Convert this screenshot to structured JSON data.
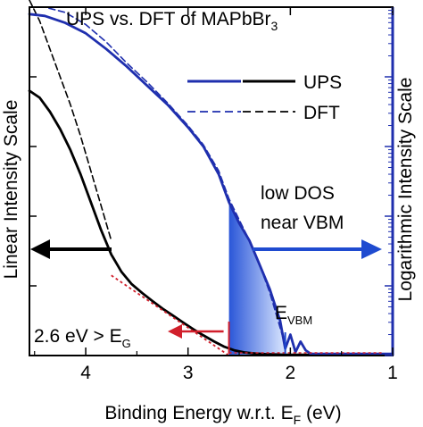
{
  "colors": {
    "ups": "#000000",
    "dft": "#1f2fae",
    "log_axis": "#1f2fae",
    "annotation_blue": "#1f4bd0",
    "annotation_red": "#d11f2b",
    "shade_start": "#2a56d8",
    "shade_end": "#dbe7ff"
  },
  "chart_data": {
    "type": "line",
    "title": "UPS vs. DFT of MAPbBr",
    "title_subscript": "3",
    "xlabel": "Binding Energy w.r.t. E",
    "xlabel_subscript": "F",
    "xlabel_unit": " (eV)",
    "ylabel_left": "Linear Intensity Scale",
    "ylabel_right": "Logarithmic Intensity Scale",
    "xlim": [
      4.55,
      1.0
    ],
    "x_reversed": true,
    "ylim": [
      0,
      1
    ],
    "x_ticks": [
      {
        "value": 4,
        "label": "4"
      },
      {
        "value": 3,
        "label": "3"
      },
      {
        "value": 2,
        "label": "2"
      },
      {
        "value": 1,
        "label": "1"
      }
    ],
    "grid": false,
    "legend": {
      "placement": "top-right",
      "entries": [
        {
          "label": "UPS",
          "style": "solid"
        },
        {
          "label": "DFT",
          "style": "dashed"
        }
      ]
    },
    "series": [
      {
        "name": "UPS",
        "axis": "linear",
        "color": "#000000",
        "style": "solid",
        "x": [
          4.55,
          4.45,
          4.35,
          4.25,
          4.15,
          4.05,
          3.95,
          3.85,
          3.75,
          3.65,
          3.55,
          3.45,
          3.35,
          3.25,
          3.15,
          3.05,
          2.95,
          2.85,
          2.75,
          2.65,
          2.55,
          2.45,
          2.35,
          2.25,
          2.15,
          2.05,
          1.95,
          1.85,
          1.75,
          1.5,
          1.25,
          1.0
        ],
        "y": [
          0.76,
          0.74,
          0.7,
          0.65,
          0.59,
          0.52,
          0.44,
          0.36,
          0.29,
          0.24,
          0.205,
          0.18,
          0.157,
          0.135,
          0.115,
          0.095,
          0.076,
          0.058,
          0.041,
          0.026,
          0.015,
          0.009,
          0.006,
          0.004,
          0.003,
          0.002,
          0.002,
          0.002,
          0.002,
          0.002,
          0.002,
          0.002
        ]
      },
      {
        "name": "DFT",
        "axis": "linear",
        "color": "#000000",
        "style": "dashed",
        "x": [
          4.55,
          4.45,
          4.35,
          4.25,
          4.15,
          4.05,
          3.95,
          3.85,
          3.75
        ],
        "y": [
          1.02,
          0.96,
          0.88,
          0.8,
          0.72,
          0.63,
          0.53,
          0.43,
          0.33
        ]
      },
      {
        "name": "UPS",
        "axis": "log",
        "color": "#1f2fae",
        "style": "solid",
        "x": [
          4.55,
          4.4,
          4.2,
          4.0,
          3.8,
          3.6,
          3.4,
          3.2,
          3.0,
          2.85,
          2.7,
          2.6,
          2.5,
          2.4,
          2.3,
          2.2,
          2.1,
          2.05,
          2.0,
          1.95,
          1.9,
          1.85,
          1.8,
          1.5,
          1.0
        ],
        "y": [
          0.98,
          0.975,
          0.955,
          0.925,
          0.88,
          0.83,
          0.775,
          0.72,
          0.655,
          0.6,
          0.52,
          0.44,
          0.38,
          0.33,
          0.26,
          0.19,
          0.1,
          0.02,
          0.06,
          0.01,
          0.04,
          0.015,
          0.005,
          0.005,
          0.005
        ]
      },
      {
        "name": "DFT",
        "axis": "log",
        "color": "#1f2fae",
        "style": "dashed",
        "x": [
          4.55,
          4.4,
          4.2,
          4.0,
          3.8,
          3.6,
          3.4,
          3.2,
          3.0,
          2.85,
          2.7,
          2.6,
          2.5,
          2.4,
          2.3,
          2.2,
          2.12,
          2.05
        ],
        "y": [
          1.0,
          1.0,
          0.985,
          0.95,
          0.9,
          0.84,
          0.785,
          0.725,
          0.66,
          0.605,
          0.53,
          0.45,
          0.39,
          0.33,
          0.26,
          0.18,
          0.1,
          0.03
        ]
      }
    ],
    "annotations": {
      "left_arrow_note": "",
      "low_dos_line1": "low DOS",
      "low_dos_line2": "near VBM",
      "e_vbm_label": "E",
      "e_vbm_subscript": "VBM",
      "gap_label": "2.6 eV > E",
      "gap_subscript": "G",
      "vbm_fit_x": [
        3.75,
        2.6
      ],
      "vbm_fit_y": [
        0.23,
        0.0
      ],
      "shaded_region_x": [
        2.6,
        2.05
      ],
      "e_vbm_x": 2.05,
      "gap_x": 2.6
    }
  }
}
